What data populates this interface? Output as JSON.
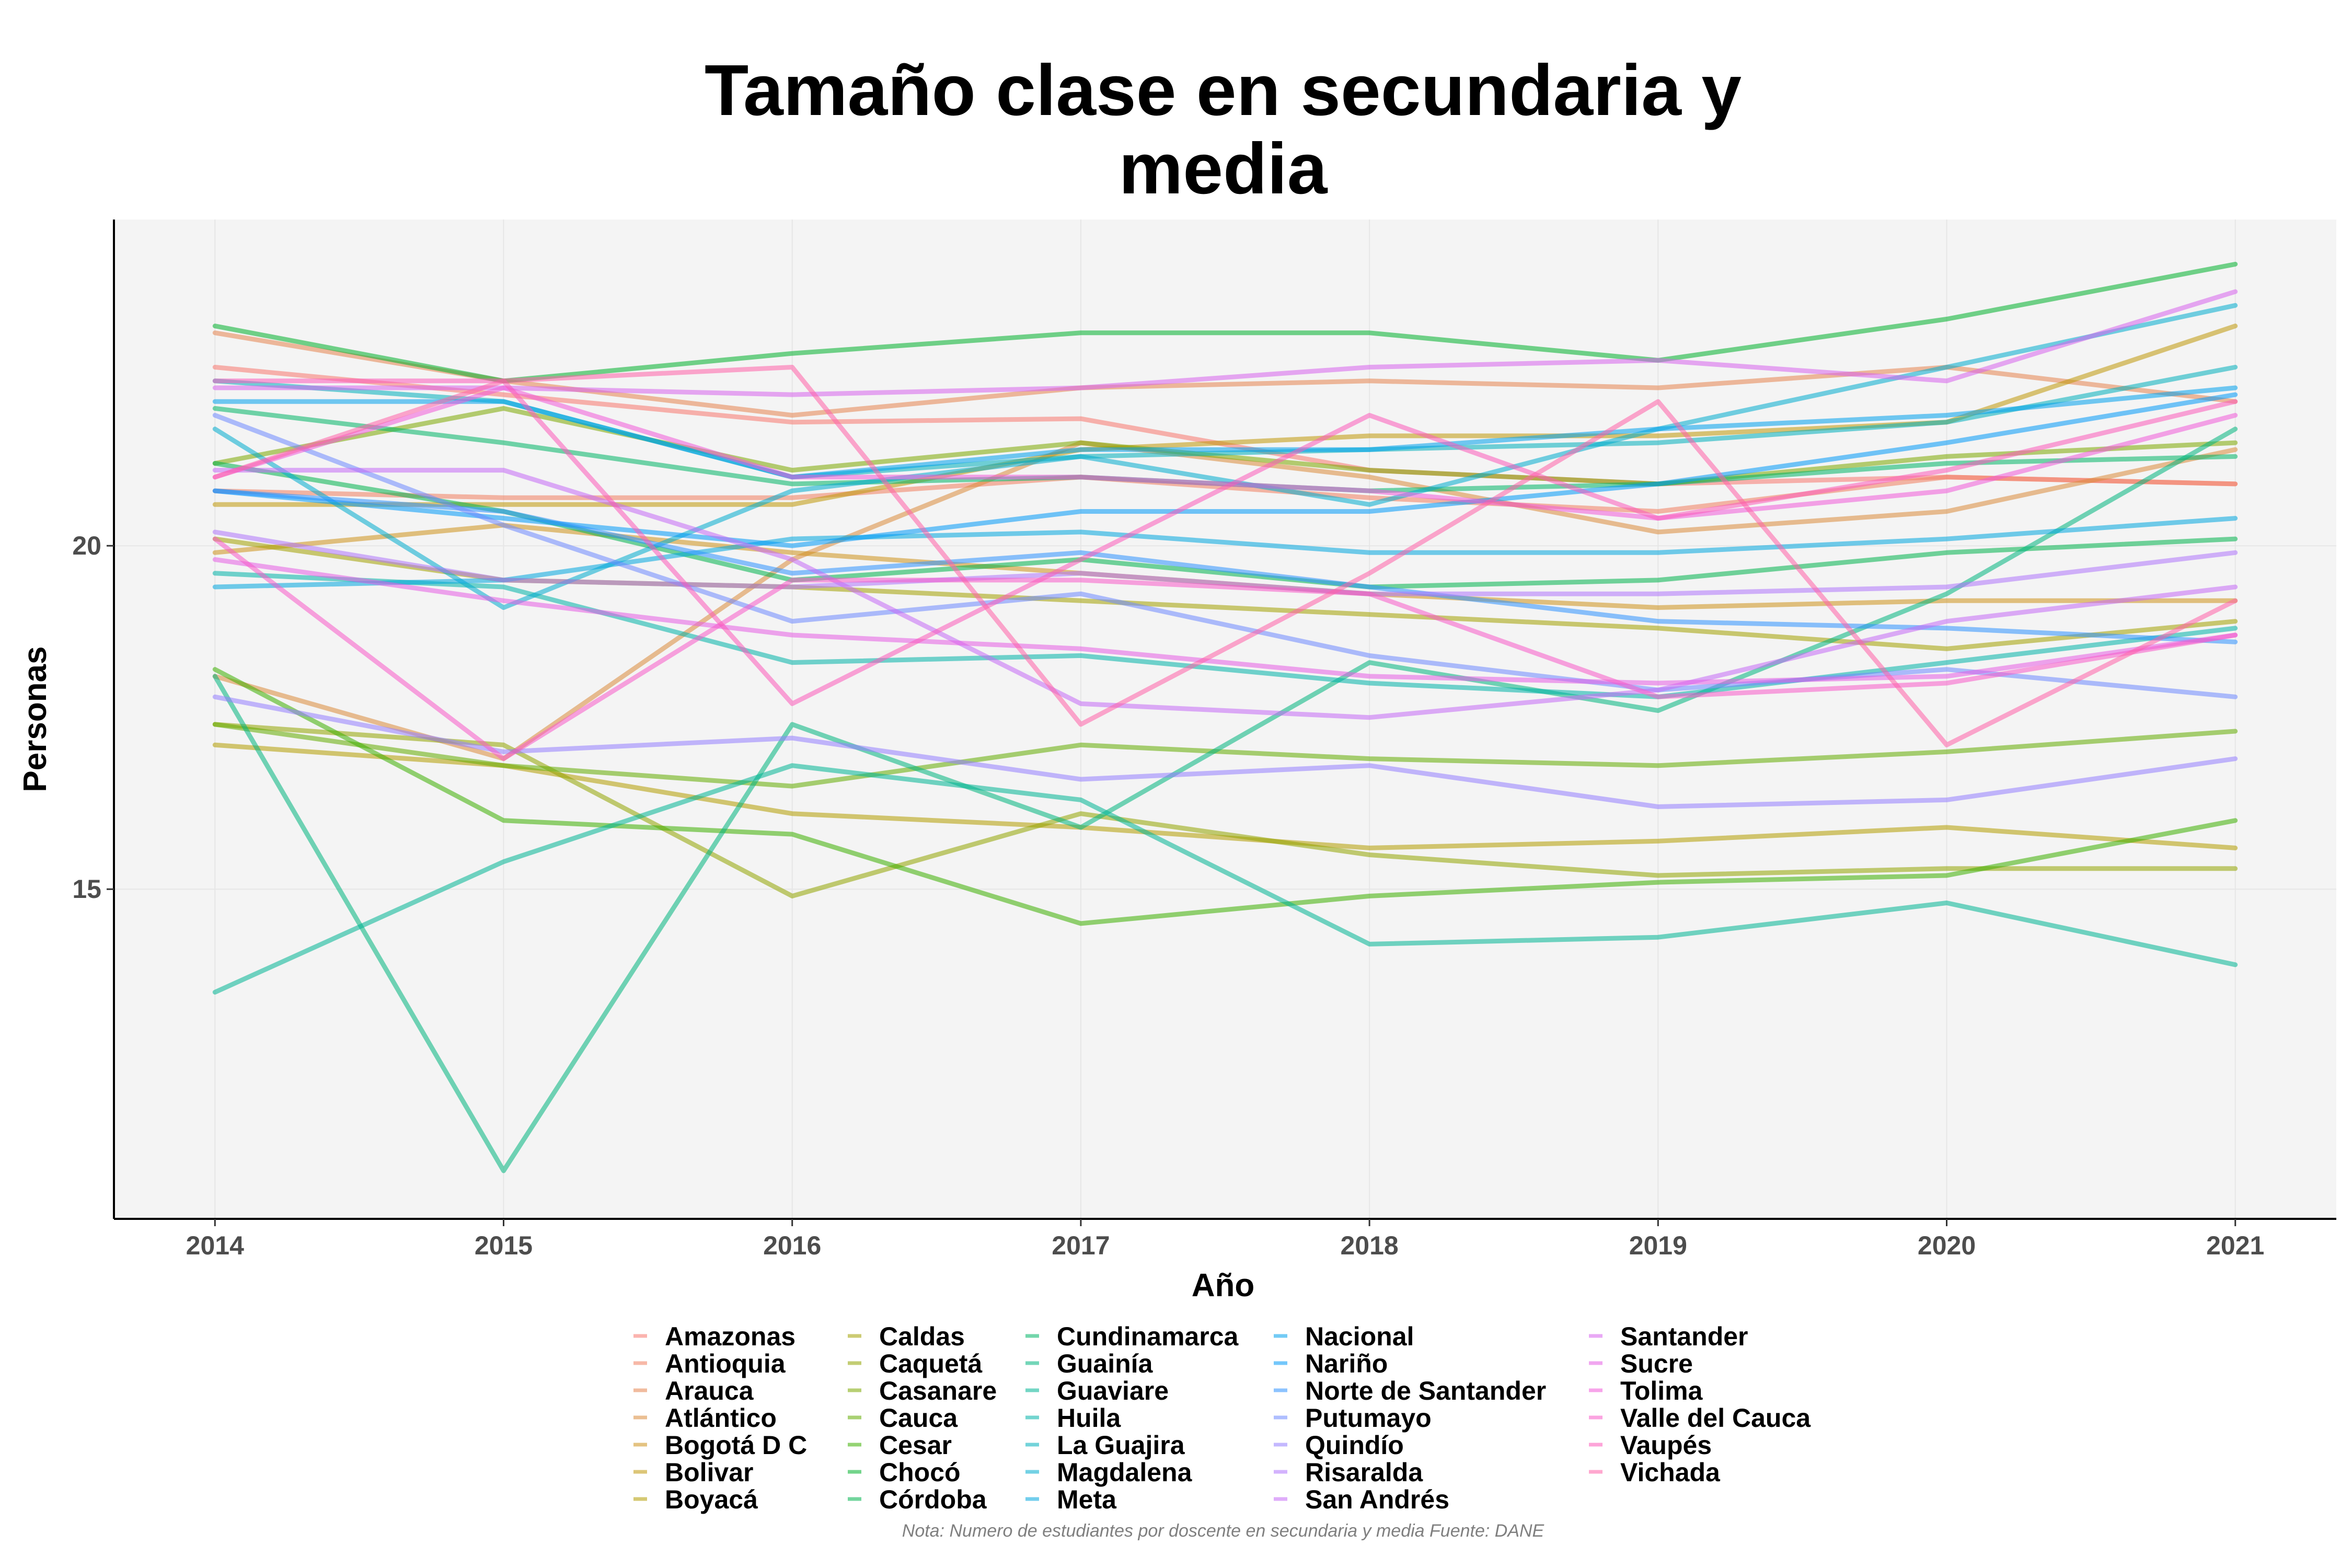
{
  "chart_data": {
    "type": "line",
    "title": "Tamaño clase en secundaria y media",
    "title_lines": [
      "Tamaño clase en secundaria y",
      "media"
    ],
    "xlabel": "Año",
    "ylabel": "Personas",
    "caption": "Nota: Numero de estudiantes por doscente en secundaria y media Fuente: DANE",
    "x": [
      2014,
      2015,
      2016,
      2017,
      2018,
      2019,
      2020,
      2021
    ],
    "x_tick_labels": [
      "2014",
      "2015",
      "2016",
      "2017",
      "2018",
      "2019",
      "2020",
      "2021"
    ],
    "y_ticks": [
      15,
      20
    ],
    "y_tick_labels": [
      "15",
      "20"
    ],
    "xlim": [
      2013.65,
      2021.35
    ],
    "ylim": [
      10.2,
      24.75
    ],
    "grid": true,
    "legend_position": "bottom",
    "series": [
      {
        "name": "Amazonas",
        "color": "#f8766d",
        "values": [
          22.6,
          22.2,
          21.8,
          21.85,
          21.1,
          20.9,
          21.0,
          20.9
        ]
      },
      {
        "name": "Antioquia",
        "color": "#f07e5f",
        "values": [
          20.8,
          20.7,
          20.7,
          21.0,
          20.7,
          20.5,
          21.0,
          20.9
        ]
      },
      {
        "name": "Arauca",
        "color": "#e6844f",
        "values": [
          23.1,
          22.4,
          21.9,
          22.3,
          22.4,
          22.3,
          22.6,
          22.1
        ]
      },
      {
        "name": "Atlántico",
        "color": "#db8b3a",
        "values": [
          18.1,
          16.9,
          19.8,
          21.5,
          21.0,
          20.2,
          20.5,
          21.4
        ]
      },
      {
        "name": "Bogotá D C",
        "color": "#cd9119",
        "values": [
          19.9,
          20.3,
          19.9,
          19.6,
          19.3,
          19.1,
          19.2,
          19.2
        ]
      },
      {
        "name": "Bolivar",
        "color": "#bf9708",
        "values": [
          20.6,
          20.6,
          20.6,
          21.4,
          21.6,
          21.6,
          21.8,
          23.2
        ]
      },
      {
        "name": "Boyacá",
        "color": "#b29c00",
        "values": [
          17.1,
          16.8,
          16.1,
          15.9,
          15.6,
          15.7,
          15.9,
          15.6
        ]
      },
      {
        "name": "Caldas",
        "color": "#a3a000",
        "values": [
          20.1,
          19.5,
          19.4,
          19.2,
          19.0,
          18.8,
          18.5,
          18.9
        ]
      },
      {
        "name": "Caquetá",
        "color": "#91a400",
        "values": [
          17.4,
          17.1,
          14.9,
          16.1,
          15.5,
          15.2,
          15.3,
          15.3
        ]
      },
      {
        "name": "Casanare",
        "color": "#7ca800",
        "values": [
          21.2,
          22.0,
          21.1,
          21.5,
          21.1,
          20.9,
          21.3,
          21.5
        ]
      },
      {
        "name": "Cauca",
        "color": "#63ab00",
        "values": [
          17.4,
          16.8,
          16.5,
          17.1,
          16.9,
          16.8,
          17.0,
          17.3
        ]
      },
      {
        "name": "Cesar",
        "color": "#3dae00",
        "values": [
          18.2,
          16.0,
          15.8,
          14.5,
          14.9,
          15.1,
          15.2,
          16.0
        ]
      },
      {
        "name": "Chocó",
        "color": "#00b02c",
        "values": [
          23.2,
          22.4,
          22.8,
          23.1,
          23.1,
          22.7,
          23.3,
          24.1
        ]
      },
      {
        "name": "Córdoba",
        "color": "#00b24c",
        "values": [
          21.2,
          20.5,
          19.5,
          19.8,
          19.4,
          19.5,
          19.9,
          20.1
        ]
      },
      {
        "name": "Cundinamarca",
        "color": "#00b466",
        "values": [
          22.0,
          21.5,
          20.9,
          21.0,
          20.8,
          20.9,
          21.2,
          21.3
        ]
      },
      {
        "name": "Guainía",
        "color": "#00b47d",
        "values": [
          18.1,
          10.9,
          17.4,
          15.9,
          18.3,
          17.6,
          19.3,
          21.7
        ]
      },
      {
        "name": "Guaviare",
        "color": "#00b493",
        "values": [
          13.5,
          15.4,
          16.8,
          16.3,
          14.2,
          14.3,
          14.8,
          13.9
        ]
      },
      {
        "name": "Huila",
        "color": "#00b2a7",
        "values": [
          19.6,
          19.4,
          18.3,
          18.4,
          18.0,
          17.8,
          18.3,
          18.8
        ]
      },
      {
        "name": "La Guajira",
        "color": "#00afbb",
        "values": [
          22.4,
          22.1,
          21.0,
          21.3,
          21.4,
          21.5,
          21.8,
          22.6
        ]
      },
      {
        "name": "Magdalena",
        "color": "#00abcd",
        "values": [
          21.7,
          19.1,
          20.8,
          21.3,
          20.6,
          21.7,
          22.6,
          23.5
        ]
      },
      {
        "name": "Meta",
        "color": "#00a6de",
        "values": [
          19.4,
          19.5,
          20.1,
          20.2,
          19.9,
          19.9,
          20.1,
          20.4
        ]
      },
      {
        "name": "Nacional",
        "color": "#00a0ed",
        "values": [
          22.1,
          22.1,
          21.0,
          21.4,
          21.4,
          21.7,
          21.9,
          22.3
        ]
      },
      {
        "name": "Nariño",
        "color": "#0099f8",
        "values": [
          20.8,
          20.4,
          20.0,
          20.5,
          20.5,
          20.9,
          21.5,
          22.2
        ]
      },
      {
        "name": "Norte de Santander",
        "color": "#2e91ff",
        "values": [
          20.8,
          20.5,
          19.6,
          19.9,
          19.4,
          18.9,
          18.8,
          18.6
        ]
      },
      {
        "name": "Putumayo",
        "color": "#6e88ff",
        "values": [
          21.9,
          20.3,
          18.9,
          19.3,
          18.4,
          17.9,
          18.2,
          17.8
        ]
      },
      {
        "name": "Quindío",
        "color": "#937eff",
        "values": [
          17.8,
          17.0,
          17.2,
          16.6,
          16.8,
          16.2,
          16.3,
          16.9
        ]
      },
      {
        "name": "Risaralda",
        "color": "#af74fc",
        "values": [
          20.2,
          19.5,
          19.4,
          19.6,
          19.3,
          19.3,
          19.4,
          19.9
        ]
      },
      {
        "name": "San Andrés",
        "color": "#c569f5",
        "values": [
          21.1,
          21.1,
          19.8,
          17.7,
          17.5,
          17.9,
          18.9,
          19.4
        ]
      },
      {
        "name": "Santander",
        "color": "#d762ed",
        "values": [
          22.3,
          22.3,
          22.2,
          22.3,
          22.6,
          22.7,
          22.4,
          23.7
        ]
      },
      {
        "name": "Sucre",
        "color": "#e55ce4",
        "values": [
          19.8,
          19.2,
          18.7,
          18.5,
          18.1,
          18.0,
          18.1,
          18.7
        ]
      },
      {
        "name": "Tolima",
        "color": "#f05ad8",
        "values": [
          21.0,
          22.3,
          21.0,
          21.0,
          20.8,
          20.4,
          20.8,
          21.9
        ]
      },
      {
        "name": "Valle del Cauca",
        "color": "#f859c9",
        "values": [
          20.1,
          16.9,
          19.5,
          19.5,
          19.3,
          17.8,
          18.0,
          18.7
        ]
      },
      {
        "name": "Vaupés",
        "color": "#fc5ab9",
        "values": [
          22.4,
          22.4,
          17.7,
          19.8,
          21.9,
          20.4,
          21.1,
          22.1
        ]
      },
      {
        "name": "Vichada",
        "color": "#ff61a7",
        "values": [
          21.0,
          22.4,
          22.6,
          17.4,
          19.6,
          22.1,
          17.1,
          19.2
        ]
      }
    ]
  }
}
